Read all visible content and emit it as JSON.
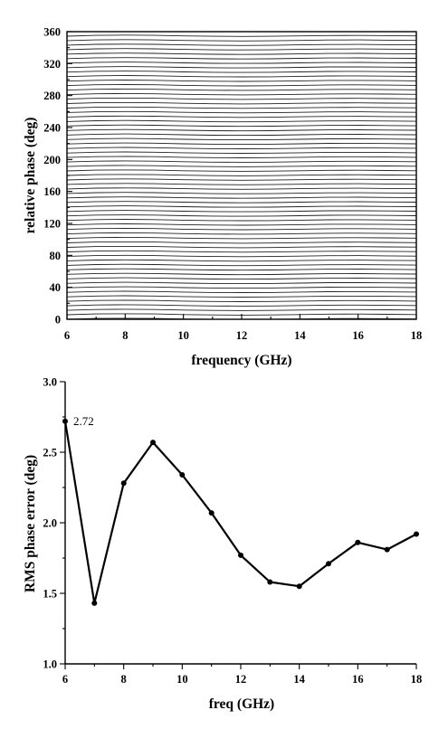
{
  "chart_data": [
    {
      "type": "line",
      "xlabel": "frequency (GHz)",
      "ylabel": "relative phase (deg)",
      "xlim": [
        6,
        18
      ],
      "ylim": [
        0,
        360
      ],
      "x_ticks": [
        6,
        8,
        10,
        12,
        14,
        16,
        18
      ],
      "y_ticks": [
        0,
        40,
        80,
        120,
        160,
        200,
        240,
        280,
        320,
        360
      ],
      "grid": false,
      "legend": "none",
      "line_color": "#222222",
      "x": [
        6,
        7,
        8,
        9,
        10,
        11,
        12,
        13,
        14,
        15,
        16,
        17,
        18
      ],
      "series_offsets": [
        0,
        1.0,
        1.3,
        1.0,
        0.3,
        -0.2,
        -0.4,
        -0.2,
        0.3,
        0.8,
        0.9,
        0.6,
        0.3
      ],
      "series_start_values": [
        0,
        5.625,
        11.25,
        16.875,
        22.5,
        28.125,
        33.75,
        39.375,
        45,
        50.625,
        56.25,
        61.875,
        67.5,
        73.125,
        78.75,
        84.375,
        90,
        95.625,
        101.25,
        106.875,
        112.5,
        118.125,
        123.75,
        129.375,
        135,
        140.625,
        146.25,
        151.875,
        157.5,
        163.125,
        168.75,
        174.375,
        180,
        185.625,
        191.25,
        196.875,
        202.5,
        208.125,
        213.75,
        219.375,
        225,
        230.625,
        236.25,
        241.875,
        247.5,
        253.125,
        258.75,
        264.375,
        270,
        275.625,
        281.25,
        286.875,
        292.5,
        298.125,
        303.75,
        309.375,
        315,
        320.625,
        326.25,
        331.875,
        337.5,
        343.125,
        348.75,
        354.375
      ]
    },
    {
      "type": "line",
      "xlabel": "freq (GHz)",
      "ylabel": "RMS phase error (deg)",
      "xlim": [
        6,
        18
      ],
      "ylim": [
        1.0,
        3.0
      ],
      "x_ticks": [
        6,
        8,
        10,
        12,
        14,
        16,
        18
      ],
      "y_ticks": [
        1.0,
        1.5,
        2.0,
        2.5,
        3.0
      ],
      "grid": false,
      "legend": "none",
      "line_color": "#000000",
      "x": [
        6,
        7,
        8,
        9,
        10,
        11,
        12,
        13,
        14,
        15,
        16,
        17,
        18
      ],
      "values": [
        2.72,
        1.43,
        2.28,
        2.57,
        2.34,
        2.07,
        1.77,
        1.58,
        1.55,
        1.71,
        1.86,
        1.81,
        1.92
      ],
      "annotation": {
        "x": 6,
        "y": 2.72,
        "text": "2.72"
      }
    }
  ]
}
